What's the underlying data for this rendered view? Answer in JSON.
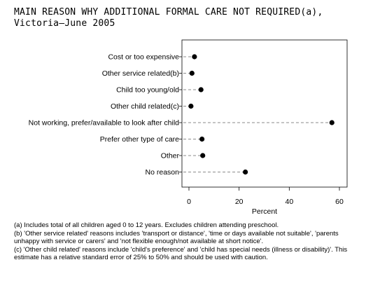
{
  "title_line1": "MAIN REASON WHY ADDITIONAL FORMAL CARE NOT REQUIRED(a),",
  "title_line2": "Victoria—June 2005",
  "chart_data": {
    "type": "scatter",
    "style": "dot-plot with dashed leader lines",
    "title": "MAIN REASON WHY ADDITIONAL FORMAL CARE NOT REQUIRED(a), Victoria—June 2005",
    "xlabel": "Percent",
    "ylabel": "",
    "xlim": [
      0,
      60
    ],
    "xticks": [
      0,
      20,
      40,
      60
    ],
    "grid": false,
    "legend": "none",
    "categories": [
      "Cost or too expensive",
      "Other service related(b)",
      "Child too young/old",
      "Other child related(c)",
      "Not working, prefer/available to look after child",
      "Prefer other type of care",
      "Other",
      "No reason"
    ],
    "values": [
      2.2,
      1.2,
      4.8,
      0.8,
      57.0,
      5.2,
      5.5,
      22.5
    ],
    "marker_color": "#000000"
  },
  "footnotes": [
    "(a) Includes total of all children aged 0 to 12 years. Excludes children attending preschool.",
    "(b) 'Other service related' reasons includes 'transport or distance', 'time or days available not suitable', 'parents unhappy with service or carers' and 'not flexible enough/not available at short notice'.",
    "(c) 'Other child related' reasons include 'child's preference' and 'child has special needs (illness or disability)'. This estimate has a relative standard error of 25% to 50% and should be used with caution."
  ]
}
